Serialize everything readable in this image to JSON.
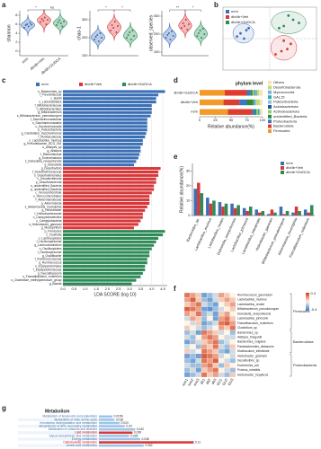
{
  "chart_data": [
    {
      "type": "violin",
      "panel": "a",
      "ylabel": "shannon",
      "categories": [
        "m/m",
        "db/db+Veh",
        "db/db+GUDCA"
      ],
      "colors": [
        "#3b6fb6",
        "#d8383a",
        "#2e8b57"
      ],
      "samples": [
        [
          5.2,
          5.8,
          6.0,
          5.5,
          6.3,
          5.9
        ],
        [
          6.5,
          7.2,
          6.8,
          7.5,
          6.0,
          7.0
        ],
        [
          5.8,
          6.4,
          6.9,
          6.2,
          5.5,
          6.6
        ]
      ],
      "ylim": [
        -1,
        9
      ],
      "yticks": [
        0,
        2,
        4,
        6,
        8
      ],
      "annotations": [
        {
          "text": "*",
          "pair": [
            0,
            1
          ]
        },
        {
          "text": "ns",
          "pair": [
            1,
            2
          ]
        }
      ]
    },
    {
      "type": "violin",
      "ylabel": "chao-1",
      "colors": [
        "#3b6fb6",
        "#d8383a",
        "#2e8b57"
      ],
      "samples": [
        [
          190,
          205,
          215,
          180,
          225,
          200
        ],
        [
          240,
          270,
          255,
          290,
          230,
          265
        ],
        [
          200,
          215,
          230,
          190,
          240,
          210
        ]
      ],
      "ylim": [
        100,
        350
      ],
      "yticks": [
        100,
        200,
        300
      ],
      "annotations": [
        {
          "text": "*",
          "pair": [
            0,
            1
          ]
        },
        {
          "text": "*",
          "pair": [
            1,
            2
          ]
        }
      ]
    },
    {
      "type": "violin",
      "ylabel": "observed_species",
      "colors": [
        "#3b6fb6",
        "#d8383a",
        "#2e8b57"
      ],
      "samples": [
        [
          180,
          195,
          205,
          170,
          215,
          190
        ],
        [
          235,
          260,
          245,
          280,
          225,
          255
        ],
        [
          190,
          205,
          220,
          180,
          230,
          200
        ]
      ],
      "ylim": [
        80,
        330
      ],
      "yticks": [
        100,
        200,
        300
      ],
      "annotations": [
        {
          "text": "**",
          "pair": [
            0,
            1
          ]
        },
        {
          "text": "*",
          "pair": [
            1,
            2
          ]
        }
      ]
    },
    {
      "type": "scatter",
      "panel": "b",
      "xlim": [
        -0.4,
        0.4
      ],
      "ylim": [
        -0.3,
        0.3
      ],
      "series": [
        {
          "name": "m/m",
          "color": "#3b6fb6",
          "x": [
            -0.25,
            -0.2,
            -0.28,
            -0.18,
            -0.22
          ],
          "y": [
            0.05,
            0.08,
            0.02,
            0.1,
            0.0
          ]
        },
        {
          "name": "db/db+Veh",
          "color": "#d8383a",
          "x": [
            0.1,
            0.18,
            0.05,
            0.15,
            0.12
          ],
          "y": [
            -0.12,
            -0.05,
            -0.15,
            -0.1,
            -0.02
          ]
        },
        {
          "name": "db/db+GUDCA",
          "color": "#2e8b57",
          "x": [
            0.12,
            0.2,
            0.08,
            0.25,
            0.16
          ],
          "y": [
            0.12,
            0.18,
            0.1,
            0.15,
            0.22
          ]
        }
      ]
    },
    {
      "type": "lda",
      "panel": "c",
      "xlabel": "LDA SCORE (log 10)",
      "xlim": [
        0,
        4.7
      ],
      "xticks": [
        {
          "value": 0,
          "label": "0.0"
        },
        0.5,
        {
          "value": 1,
          "label": "1.0"
        },
        1.5,
        {
          "value": 2,
          "label": "2.0"
        },
        2.5,
        {
          "value": 3,
          "label": "3.0"
        },
        3.5,
        {
          "value": 4,
          "label": "4.0"
        },
        4.5
      ],
      "series": [
        {
          "name": "m/m",
          "color": "#3b6fb6",
          "taxa": [
            "s_Bacteroides_sp",
            "f_Prevotellaceae",
            "c_Bacilli",
            "o_Lactobacillales",
            "f_Bifidobacteriaceae",
            "o_Bifidobacteriales",
            "g_Bifidobacterium",
            "s_Bifidobacterium_pseudolongum",
            "f_Saccharimonadaceae",
            "o_Saccharimonadales",
            "c_Saccharimonadia",
            "p_Patescibacteria",
            "g_Candidatus_Saccharimonas",
            "f_Muribaculaceae",
            "s_Lactobacillus_murinus",
            "g_Prevotellaceae_UCG_001",
            "s_Alistipes_sp",
            "g_Alistipes",
            "f_Rikenellaceae",
            "g_Enterorhabdus",
            "s_Dubosiella_newyorkensis",
            "g_Dubosiella"
          ],
          "values": [
            4.6,
            4.3,
            4.2,
            4.2,
            4.0,
            4.0,
            4.0,
            3.95,
            3.8,
            3.8,
            3.8,
            3.8,
            3.75,
            3.7,
            3.6,
            3.6,
            3.5,
            3.5,
            3.45,
            3.4,
            3.3,
            3.2
          ]
        },
        {
          "name": "db/db+Veh",
          "color": "#d8383a",
          "taxa": [
            "g_Desulfovibrio",
            "f_Desulfovibrionaceae",
            "o_Desulfovibrionales",
            "c_Desulfovibrionia",
            "p_Desulfobacterota",
            "s_unidentified_Bacteria",
            "p_unidentified_Bacteria",
            "c_Verrucomicrobiae",
            "o_Verrucomicrobiales",
            "f_Akkermansiaceae",
            "g_Akkermansia",
            "s_Akkermansia_muciniphila",
            "g_Helicobacter",
            "f_Helicobacteraceae",
            "o_Campylobacterales",
            "c_Campylobacteria",
            "s_Helicobacter_ganmani",
            "g_Mucispirillum"
          ],
          "values": [
            4.4,
            4.3,
            4.3,
            4.2,
            4.2,
            4.1,
            4.1,
            4.0,
            3.9,
            3.9,
            3.9,
            3.8,
            3.7,
            3.6,
            3.6,
            3.5,
            3.4,
            3.2
          ]
        },
        {
          "name": "db/db+GUDCA",
          "color": "#2e8b57",
          "taxa": [
            "p_Firmicutes",
            "c_Clostridia",
            "o_Lachnospirales",
            "f_Lachnospiraceae",
            "g_Lachnoclostridium",
            "o_Oscillospirales",
            "f_Oscillospiraceae",
            "g_Oscillibacter",
            "f_Ruminococcaceae",
            "g_Ruminococcus",
            "o_Erysipelotrichales",
            "f_Erysipelotrichaceae",
            "g_Faecalibaculum",
            "s_Faecalibaculum_rodentium",
            "s_Clostridium_methylpentosum_group",
            "g_Blautia"
          ],
          "values": [
            4.6,
            4.5,
            4.3,
            4.2,
            4.1,
            4.0,
            3.9,
            3.9,
            3.8,
            3.8,
            3.7,
            3.7,
            3.6,
            3.5,
            3.3,
            3.1
          ]
        }
      ]
    },
    {
      "type": "stacked_bar",
      "panel": "d",
      "title": "phylum level",
      "xlabel": "Relative abundance(%)",
      "categories": [
        "db/db+GUDCA",
        "db/db+Veh",
        "m/m"
      ],
      "xlim": [
        0,
        100
      ],
      "xticks": [
        0,
        25,
        50,
        75,
        100
      ],
      "series": [
        {
          "name": "Others",
          "color": "#f3e3b5",
          "values": [
            5.5,
            4.5,
            3
          ]
        },
        {
          "name": "Desulfobacterota",
          "color": "#c8d96f",
          "values": [
            3,
            6,
            1
          ]
        },
        {
          "name": "Myxococcota",
          "color": "#6fb6e3",
          "values": [
            0.5,
            0.5,
            0.5
          ]
        },
        {
          "name": "GAL15",
          "color": "#2ab0a0",
          "values": [
            1,
            1,
            0.5
          ]
        },
        {
          "name": "Patescibacteria",
          "color": "#8cc0e8",
          "values": [
            2,
            1,
            1
          ]
        },
        {
          "name": "Acidobacteriota",
          "color": "#1f5a96",
          "values": [
            1,
            1,
            1
          ]
        },
        {
          "name": "Actinobacteriota",
          "color": "#8fcf6f",
          "values": [
            3,
            1,
            3
          ]
        },
        {
          "name": "unidentified_Bacteria",
          "color": "#2e8b3a",
          "values": [
            3,
            10,
            2
          ]
        },
        {
          "name": "Proteobacteria",
          "color": "#3b78c2",
          "values": [
            6,
            12,
            5
          ]
        },
        {
          "name": "Bacteroidota",
          "color": "#e03b2f",
          "values": [
            35,
            25,
            38
          ]
        },
        {
          "name": "Firmicutes",
          "color": "#f39a2a",
          "values": [
            40,
            38,
            45
          ]
        }
      ]
    },
    {
      "type": "grouped_bar",
      "panel": "e",
      "ylabel": "Relative abundance(%)",
      "ylim": [
        0,
        35
      ],
      "yticks": [
        0,
        10,
        20,
        30
      ],
      "categories": [
        "Bacteroides_sp.",
        "Lactobacillus_murinus",
        "Lactobacillus_reuteri",
        "Dubosiella_newyorkensis",
        "Lactobacillus_johnsonii",
        "Lactobacillus_intestinalis",
        "Helicobacter_ganmani",
        "Bifidobacterium_pseudolongum",
        "Akkermansia_muciniphila",
        "Faecalibaculum_rodentium"
      ],
      "series": [
        {
          "name": "m/m",
          "color": "#3b6fb6",
          "values": [
            18,
            12,
            9,
            8,
            5,
            4,
            1,
            6,
            2,
            4
          ]
        },
        {
          "name": "db/db+Veh",
          "color": "#d8383a",
          "values": [
            22,
            8,
            6,
            5,
            3,
            2,
            4,
            1,
            6,
            2
          ]
        },
        {
          "name": "db/db+GUDCA",
          "color": "#2e8b57",
          "values": [
            15,
            10,
            8,
            7,
            6,
            3,
            2,
            3,
            3,
            7
          ]
        }
      ]
    },
    {
      "type": "heatmap",
      "panel": "f",
      "zlim": [
        -0.4,
        0.4
      ],
      "columns": [
        "mm1",
        "mm2",
        "mm3",
        "db1",
        "db2",
        "db3",
        "GU1",
        "GU2",
        "GU3"
      ],
      "rows": [
        "Ruminococcus_gauvreauii",
        "Lactobacillus_murinus",
        "Lactobacillus_reuteri",
        "Bifidobacterium_pseudolongum",
        "Dubosiella_newyorkensis",
        "Lactobacillus_johnsonii",
        "Faecalibaculum_rodentium",
        "Clostridium_sp",
        "Bacteroides_sp.",
        "Alistipes_finegoldii",
        "Bacteroides_vulgatus",
        "Parabacteroides_distasonis",
        "Muribaculum_intestinale",
        "Helicobacter_ganmani",
        "Desulfovibrio_sp",
        "Escherichia_coli",
        "Proteus_mirabilis",
        "Helicobacter_hepaticus"
      ],
      "groups": [
        {
          "name": "Firmicutes",
          "rows": 8
        },
        {
          "name": "Bacteroidota",
          "rows": 5
        },
        {
          "name": "Proteobacteria",
          "rows": 5
        }
      ],
      "values": [
        [
          0.3,
          0.2,
          0.1,
          -0.3,
          -0.2,
          -0.1,
          0.2,
          0.1,
          0.0
        ],
        [
          0.2,
          0.35,
          0.1,
          -0.2,
          -0.3,
          -0.1,
          0.1,
          0.2,
          0.1
        ],
        [
          0.1,
          0.2,
          0.3,
          -0.1,
          -0.2,
          -0.3,
          0.0,
          0.1,
          0.2
        ],
        [
          0.35,
          0.3,
          0.2,
          -0.3,
          -0.35,
          -0.2,
          -0.1,
          0.0,
          0.1
        ],
        [
          0.2,
          0.1,
          0.3,
          -0.2,
          -0.1,
          -0.3,
          0.1,
          0.2,
          0.0
        ],
        [
          -0.1,
          0.2,
          0.1,
          -0.2,
          0.0,
          -0.3,
          0.2,
          0.3,
          0.1
        ],
        [
          0.0,
          -0.1,
          0.1,
          -0.3,
          -0.2,
          -0.1,
          0.3,
          0.35,
          0.2
        ],
        [
          0.1,
          0.0,
          -0.1,
          -0.2,
          -0.1,
          0.0,
          0.2,
          0.1,
          0.3
        ],
        [
          -0.2,
          -0.1,
          -0.3,
          0.3,
          0.2,
          0.1,
          -0.1,
          0.0,
          -0.2
        ],
        [
          -0.1,
          -0.2,
          0.0,
          0.2,
          0.3,
          0.2,
          0.0,
          -0.1,
          -0.1
        ],
        [
          -0.3,
          -0.2,
          -0.1,
          0.1,
          0.2,
          0.3,
          -0.2,
          -0.1,
          0.0
        ],
        [
          -0.1,
          0.0,
          -0.2,
          0.2,
          0.1,
          0.3,
          -0.1,
          -0.2,
          0.1
        ],
        [
          0.1,
          -0.1,
          0.0,
          0.3,
          0.2,
          0.1,
          -0.2,
          -0.3,
          -0.1
        ],
        [
          -0.3,
          -0.2,
          -0.3,
          0.35,
          0.3,
          0.2,
          -0.1,
          0.0,
          -0.1
        ],
        [
          -0.2,
          -0.3,
          -0.1,
          0.3,
          0.2,
          0.35,
          0.0,
          -0.1,
          -0.2
        ],
        [
          -0.1,
          -0.2,
          -0.2,
          0.2,
          0.3,
          0.1,
          -0.2,
          0.1,
          0.0
        ],
        [
          -0.2,
          -0.1,
          -0.3,
          0.1,
          0.2,
          0.3,
          0.0,
          -0.1,
          -0.2
        ],
        [
          -0.3,
          -0.2,
          -0.1,
          0.3,
          0.1,
          0.2,
          -0.1,
          -0.2,
          0.1
        ]
      ]
    },
    {
      "type": "hbar",
      "panel": "g",
      "title": "Metabolism",
      "categories": [
        "Metabolism of terpenoids and polyketides",
        "Metabolism of other amino acids",
        "Xenobiotics biodegradation and metabolism",
        "Biosynthesis of other secondary metabolites",
        "Metabolism of cofactors and vitamins",
        "Lipid metabolism",
        "Glycan biosynthesis and metabolism",
        "Energy metabolism",
        "Carbohydrate metabolism",
        "Amino acid metabolism"
      ],
      "values": [
        0.0156,
        0.018,
        0.024,
        0.03,
        0.042,
        0.039,
        0.035,
        0.048,
        0.11,
        0.052
      ],
      "colors": [
        "#9ec5e8",
        "#9ec5e8",
        "#9ec5e8",
        "#9ec5e8",
        "#9ec5e8",
        "#d8383a",
        "#9ec5e8",
        "#9ec5e8",
        "#d8383a",
        "#9ec5e8"
      ],
      "xlim": [
        0,
        0.12
      ]
    }
  ]
}
